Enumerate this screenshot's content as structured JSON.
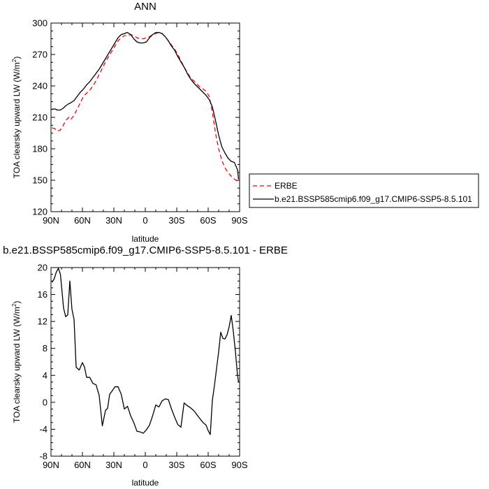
{
  "chart_data": [
    {
      "type": "line",
      "title": "ANN",
      "xlabel": "latitude",
      "ylabel": "TOA clearsky upward LW (W/m2)",
      "ylabel_main": "TOA clearsky upward LW (W/m",
      "ylabel_sup": "2",
      "ylabel_tail": ")",
      "xlim": [
        90,
        -90
      ],
      "ylim": [
        120,
        300
      ],
      "x_ticks": [
        90,
        60,
        30,
        0,
        -30,
        -60,
        -90
      ],
      "x_tick_labels": [
        "90N",
        "60N",
        "30N",
        "0",
        "30S",
        "60S",
        "90S"
      ],
      "y_ticks": [
        120,
        150,
        180,
        210,
        240,
        270,
        300
      ],
      "y_tick_labels": [
        "120",
        "150",
        "180",
        "210",
        "240",
        "270",
        "300"
      ],
      "legend_position": "right",
      "series": [
        {
          "name": "ERBE",
          "color": "#ff0000",
          "dash": "dashed",
          "x": [
            89,
            86,
            84,
            81,
            78,
            76,
            73,
            71,
            68,
            65,
            62,
            59,
            56,
            53,
            50,
            47,
            44,
            41,
            38,
            35,
            32,
            29,
            26,
            23,
            20,
            17,
            14,
            11,
            8,
            5,
            2,
            -1,
            -4,
            -7,
            -10,
            -13,
            -16,
            -19,
            -22,
            -25,
            -28,
            -31,
            -34,
            -37,
            -40,
            -43,
            -46,
            -49,
            -52,
            -55,
            -58,
            -61,
            -64,
            -67,
            -70,
            -73,
            -76,
            -79,
            -82,
            -85,
            -88,
            -89
          ],
          "y": [
            200,
            199,
            197,
            198,
            203,
            207,
            210,
            208,
            212,
            218,
            224,
            230,
            233,
            236,
            240,
            245,
            251,
            257,
            263,
            268,
            273,
            278,
            283,
            286,
            288,
            288,
            289,
            288,
            286,
            285,
            285,
            286,
            287,
            289,
            290,
            291,
            290,
            287,
            283,
            279,
            275,
            270,
            264,
            258,
            253,
            248,
            245,
            242,
            239,
            237,
            235,
            230,
            215,
            195,
            180,
            169,
            162,
            157,
            154,
            151,
            149,
            148
          ]
        },
        {
          "name": "b.e21.BSSP585cmip6.f09_g17.CMIP6-SSP5-8.5.101",
          "color": "#000000",
          "dash": "solid",
          "x": [
            89,
            86,
            84,
            81,
            78,
            76,
            73,
            71,
            68,
            65,
            62,
            59,
            56,
            53,
            50,
            47,
            44,
            41,
            38,
            35,
            32,
            29,
            26,
            23,
            20,
            17,
            14,
            11,
            8,
            5,
            2,
            -1,
            -4,
            -7,
            -10,
            -13,
            -16,
            -19,
            -22,
            -25,
            -28,
            -31,
            -34,
            -37,
            -40,
            -43,
            -46,
            -49,
            -52,
            -55,
            -58,
            -61,
            -64,
            -67,
            -70,
            -73,
            -76,
            -79,
            -82,
            -85,
            -88,
            -89
          ],
          "y": [
            218,
            218,
            217,
            217,
            219,
            221,
            223,
            224,
            226,
            230,
            234,
            237,
            241,
            244,
            248,
            252,
            256,
            261,
            266,
            271,
            276,
            281,
            286,
            289,
            290,
            291,
            289,
            285,
            282,
            281,
            281,
            282,
            286,
            289,
            291,
            291,
            290,
            287,
            283,
            278,
            274,
            268,
            263,
            258,
            252,
            247,
            243,
            240,
            237,
            234,
            231,
            227,
            220,
            207,
            193,
            182,
            176,
            171,
            168,
            167,
            160,
            151
          ]
        }
      ]
    },
    {
      "type": "line",
      "title": "b.e21.BSSP585cmip6.f09_g17.CMIP6-SSP5-8.5.101 - ERBE",
      "xlabel": "latitude",
      "ylabel": "TOA clearsky upward LW (W/m2)",
      "ylabel_main": "TOA clearsky upward LW (W/m",
      "ylabel_sup": "2",
      "ylabel_tail": ")",
      "xlim": [
        90,
        -90
      ],
      "ylim": [
        -8,
        20
      ],
      "x_ticks": [
        90,
        60,
        30,
        0,
        -30,
        -60,
        -90
      ],
      "x_tick_labels": [
        "90N",
        "60N",
        "30N",
        "0",
        "30S",
        "60S",
        "90S"
      ],
      "y_ticks": [
        -8,
        -4,
        0,
        4,
        8,
        12,
        16,
        20
      ],
      "y_tick_labels": [
        "-8",
        "-4",
        "0",
        "4",
        "8",
        "12",
        "16",
        "20"
      ],
      "series": [
        {
          "color": "#000000",
          "dash": "solid",
          "x": [
            89,
            87,
            85,
            83,
            81,
            78,
            76,
            74,
            72,
            70,
            68,
            66,
            63,
            60,
            58,
            56,
            53,
            50,
            47,
            44,
            41,
            38,
            36,
            34,
            32,
            29,
            26,
            23,
            20,
            17,
            14,
            11,
            8,
            5,
            2,
            -1,
            -4,
            -7,
            -10,
            -13,
            -16,
            -19,
            -22,
            -25,
            -28,
            -31,
            -34,
            -37,
            -40,
            -43,
            -46,
            -49,
            -52,
            -55,
            -58,
            -60,
            -62,
            -64,
            -66,
            -68,
            -70,
            -72,
            -74,
            -76,
            -78,
            -80,
            -82,
            -84,
            -86,
            -88,
            -89
          ],
          "y": [
            17.8,
            18.3,
            19.3,
            19.9,
            19.0,
            14.0,
            12.7,
            13.0,
            18.0,
            13.8,
            12.3,
            5.2,
            4.8,
            5.9,
            5.2,
            3.7,
            3.7,
            2.8,
            2.6,
            1.0,
            -3.5,
            -1.2,
            -0.9,
            1.2,
            1.6,
            2.3,
            2.3,
            1.2,
            -1.0,
            -0.6,
            -2.0,
            -3.0,
            -4.3,
            -4.4,
            -4.6,
            -4.1,
            -3.4,
            -2.0,
            -0.4,
            -0.7,
            0.2,
            0.5,
            0.4,
            -1.0,
            -2.2,
            -3.3,
            -3.7,
            -0.1,
            -0.5,
            -0.8,
            -1.2,
            -1.8,
            -2.4,
            -3.0,
            -3.4,
            -4.2,
            -4.8,
            0.3,
            2.5,
            5.0,
            7.5,
            10.4,
            9.5,
            9.4,
            10.0,
            11.2,
            12.9,
            10.5,
            7.5,
            4.0,
            3.0
          ]
        }
      ]
    }
  ]
}
